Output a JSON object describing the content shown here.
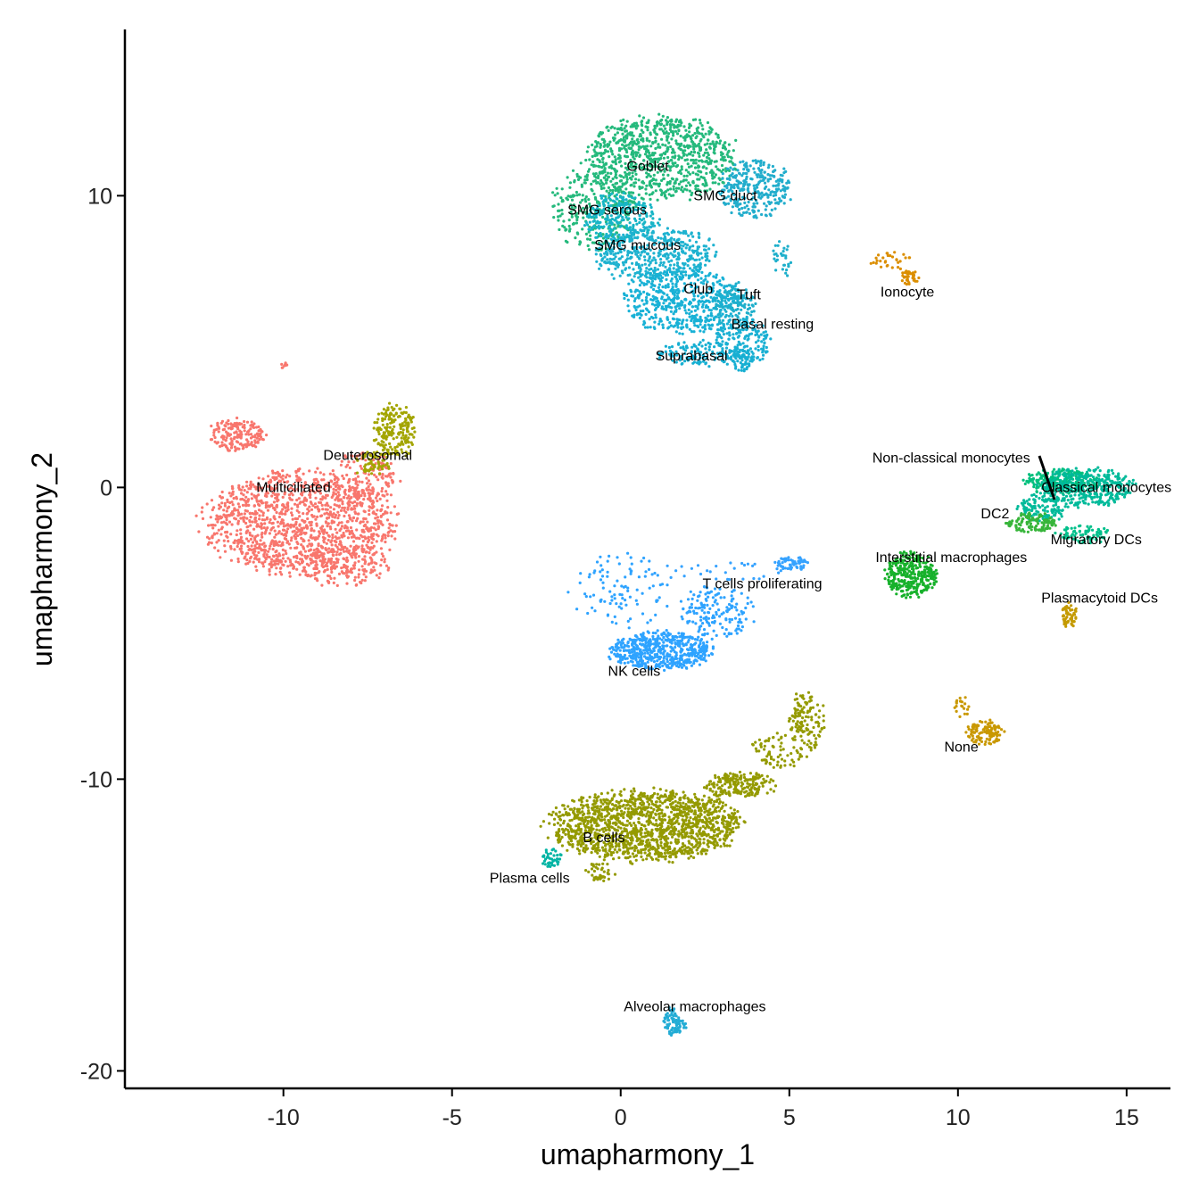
{
  "chart_data": {
    "type": "scatter",
    "title": "",
    "xlabel": "umapharmony_1",
    "ylabel": "umapharmony_2",
    "xlim": [
      -14.7,
      16.3
    ],
    "ylim": [
      -20.6,
      15.7
    ],
    "xticks": [
      -10,
      -5,
      0,
      5,
      10,
      15
    ],
    "yticks": [
      -20,
      -10,
      0,
      10
    ],
    "xtick_labels": [
      "-10",
      "-5",
      "0",
      "5",
      "10",
      "15"
    ],
    "ytick_labels": [
      "-20",
      "-10",
      "0",
      "10"
    ],
    "grid": false,
    "legend": "none",
    "clusters": [
      {
        "name": "Multiciliated",
        "label_x": -9.7,
        "label_y": 0.0,
        "color": "#F8766D",
        "blobs": [
          [
            -9.5,
            -1.2,
            2.6,
            1.6,
            1300
          ],
          [
            -11.4,
            1.8,
            0.8,
            0.5,
            180
          ],
          [
            -8.2,
            -2.7,
            1.2,
            0.7,
            160
          ],
          [
            -7.6,
            0.3,
            1.0,
            0.9,
            140
          ],
          [
            -10.0,
            4.2,
            0.1,
            0.1,
            8
          ]
        ]
      },
      {
        "name": "Deuterosomal",
        "label_x": -7.5,
        "label_y": 1.1,
        "color": "#A3A500",
        "blobs": [
          [
            -6.7,
            1.9,
            0.55,
            0.85,
            200
          ],
          [
            -7.4,
            0.8,
            0.5,
            0.4,
            60
          ]
        ]
      },
      {
        "name": "Goblet",
        "label_x": 0.8,
        "label_y": 11.0,
        "color": "#24B97C",
        "blobs": [
          [
            1.2,
            11.3,
            2.0,
            1.3,
            850
          ],
          [
            -0.8,
            9.6,
            1.1,
            1.4,
            300
          ]
        ]
      },
      {
        "name": "SMG duct",
        "label_x": 3.1,
        "label_y": 10.0,
        "color": "#22ADCC",
        "blobs": [
          [
            4.0,
            10.2,
            1.0,
            0.9,
            300
          ]
        ]
      },
      {
        "name": "SMG serous",
        "label_x": -0.4,
        "label_y": 9.5,
        "color": "#17B5C6",
        "blobs": [
          [
            0.0,
            9.2,
            1.0,
            0.8,
            250
          ]
        ]
      },
      {
        "name": "SMG mucous",
        "label_x": 0.5,
        "label_y": 8.3,
        "color": "#1EB2D0",
        "blobs": [
          [
            1.0,
            8.0,
            1.6,
            0.9,
            450
          ]
        ]
      },
      {
        "name": "Club",
        "label_x": 2.3,
        "label_y": 6.8,
        "color": "#18B1D6",
        "blobs": [
          [
            1.8,
            6.4,
            1.6,
            1.0,
            500
          ]
        ]
      },
      {
        "name": "Tuft",
        "label_x": 3.8,
        "label_y": 6.6,
        "color": "#1EAFCB",
        "blobs": [
          [
            3.4,
            6.2,
            0.6,
            0.7,
            120
          ],
          [
            4.8,
            7.8,
            0.3,
            0.6,
            30
          ]
        ]
      },
      {
        "name": "Basal resting",
        "label_x": 4.5,
        "label_y": 5.6,
        "color": "#1AB0D3",
        "blobs": [
          [
            3.6,
            5.0,
            0.8,
            0.8,
            200
          ]
        ]
      },
      {
        "name": "Suprabasal",
        "label_x": 2.1,
        "label_y": 4.5,
        "color": "#16AFD2",
        "blobs": [
          [
            2.3,
            4.6,
            1.1,
            0.4,
            120
          ],
          [
            3.6,
            4.4,
            0.3,
            0.4,
            40
          ]
        ]
      },
      {
        "name": "Ionocyte",
        "label_x": 8.5,
        "label_y": 6.7,
        "color": "#DB8E00",
        "blobs": [
          [
            8.6,
            7.2,
            0.25,
            0.25,
            40
          ],
          [
            8.0,
            7.8,
            0.55,
            0.3,
            30
          ]
        ]
      },
      {
        "name": "Non-classical monocytes",
        "label_x": 9.8,
        "label_y": 1.0,
        "color": "#00BF7D",
        "blobs": [
          [
            13.1,
            0.2,
            1.0,
            0.4,
            200
          ]
        ]
      },
      {
        "name": "Classical monocytes",
        "label_x": 14.4,
        "label_y": 0.0,
        "color": "#00BA9A",
        "blobs": [
          [
            13.8,
            0.0,
            1.3,
            0.6,
            380
          ],
          [
            12.5,
            -0.7,
            0.7,
            0.4,
            120
          ]
        ]
      },
      {
        "name": "DC2",
        "label_x": 11.1,
        "label_y": -0.9,
        "color": "#37B53A",
        "blobs": [
          [
            12.2,
            -1.2,
            0.7,
            0.3,
            120
          ]
        ]
      },
      {
        "name": "Migratory DCs",
        "label_x": 14.1,
        "label_y": -1.8,
        "color": "#00C08B",
        "blobs": [
          [
            13.7,
            -1.6,
            0.7,
            0.3,
            80
          ]
        ]
      },
      {
        "name": "Interstitial macrophages",
        "label_x": 9.8,
        "label_y": -2.4,
        "color": "#17B12B",
        "blobs": [
          [
            8.6,
            -3.0,
            0.7,
            0.7,
            320
          ]
        ]
      },
      {
        "name": "T cells proliferating",
        "label_x": 4.2,
        "label_y": -3.3,
        "color": "#35A2FF",
        "blobs": [
          [
            5.1,
            -2.6,
            0.5,
            0.2,
            60
          ],
          [
            2.7,
            -2.9,
            2.0,
            0.3,
            30
          ]
        ]
      },
      {
        "name": "Plasmacytoid DCs",
        "label_x": 14.2,
        "label_y": -3.8,
        "color": "#C49A00",
        "blobs": [
          [
            13.3,
            -4.4,
            0.2,
            0.4,
            60
          ]
        ]
      },
      {
        "name": "NK cells",
        "label_x": 0.4,
        "label_y": -6.3,
        "color": "#2EA3FF",
        "blobs": [
          [
            1.2,
            -5.6,
            1.4,
            0.6,
            550
          ],
          [
            0.0,
            -3.5,
            1.4,
            1.2,
            100
          ],
          [
            2.9,
            -4.2,
            1.0,
            0.9,
            160
          ]
        ]
      },
      {
        "name": "None",
        "label_x": 10.1,
        "label_y": -8.9,
        "color": "#C99800",
        "blobs": [
          [
            10.8,
            -8.4,
            0.5,
            0.4,
            120
          ],
          [
            10.1,
            -7.5,
            0.2,
            0.4,
            20
          ]
        ]
      },
      {
        "name": "B cells",
        "label_x": -0.5,
        "label_y": -12.0,
        "color": "#949A00",
        "blobs": [
          [
            0.7,
            -11.6,
            2.6,
            1.1,
            1500
          ],
          [
            3.5,
            -10.2,
            1.0,
            0.4,
            200
          ],
          [
            5.5,
            -8.0,
            0.5,
            0.9,
            120
          ],
          [
            4.7,
            -9.0,
            0.8,
            0.6,
            80
          ],
          [
            -0.6,
            -13.2,
            0.4,
            0.3,
            40
          ]
        ]
      },
      {
        "name": "Plasma cells",
        "label_x": -2.7,
        "label_y": -13.4,
        "color": "#00B4A4",
        "blobs": [
          [
            -2.1,
            -12.7,
            0.3,
            0.3,
            40
          ]
        ]
      },
      {
        "name": "Alveolar macrophages",
        "label_x": 2.2,
        "label_y": -17.8,
        "color": "#23ACD5",
        "blobs": [
          [
            1.5,
            -18.3,
            0.2,
            0.5,
            60
          ],
          [
            1.8,
            -18.5,
            0.15,
            0.2,
            20
          ]
        ]
      }
    ]
  }
}
